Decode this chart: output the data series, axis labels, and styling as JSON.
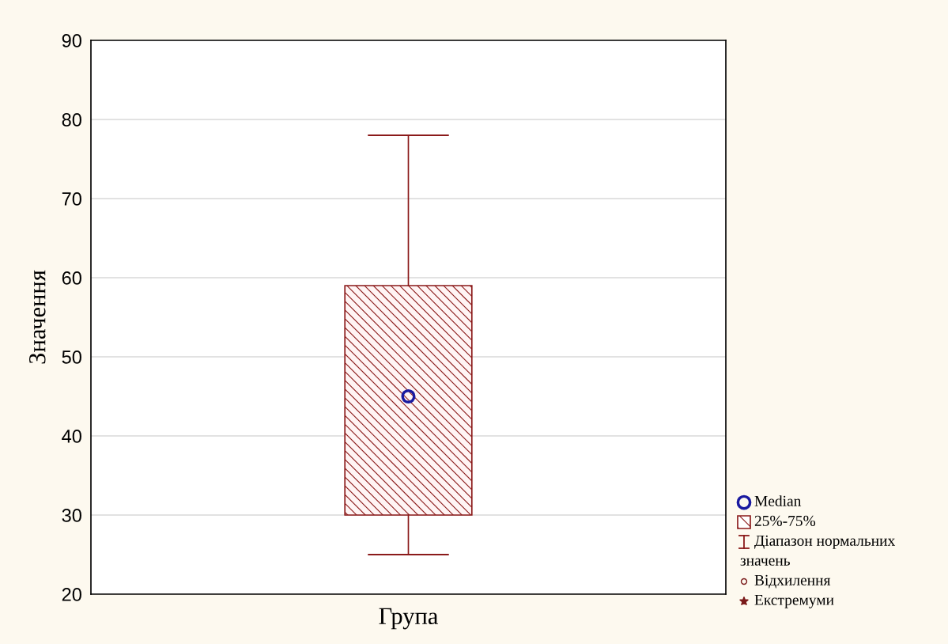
{
  "chart_data": {
    "type": "box",
    "ylabel": "Значення",
    "categories": [
      "Група"
    ],
    "series": [
      {
        "color": "#8b1a1a",
        "boxes": [
          {
            "low": 25,
            "q1": 30,
            "median": 45,
            "q3": 59,
            "high": 78
          }
        ]
      }
    ],
    "ylim": [
      20,
      90
    ],
    "yticks": [
      20,
      30,
      40,
      50,
      60,
      70,
      80,
      90
    ],
    "grid": "y",
    "annotations": [
      "Median",
      "25%-75%",
      "Діапазон нормальних значень",
      "Відхилення",
      "Екстремуми"
    ]
  }
}
